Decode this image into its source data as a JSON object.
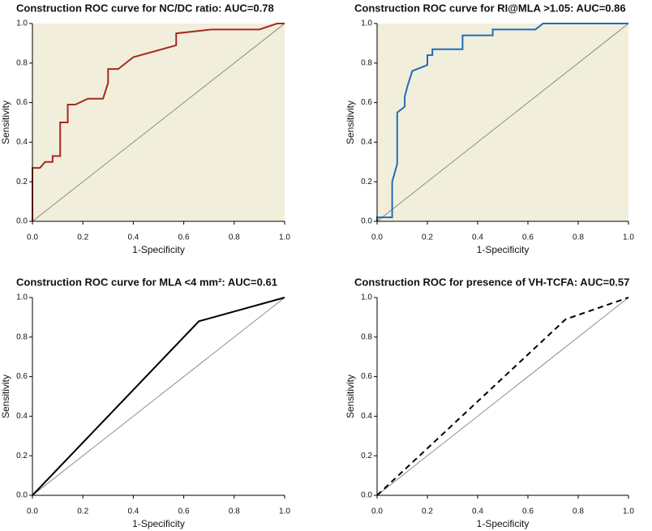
{
  "chart_data": [
    {
      "type": "line",
      "title": "Construction ROC curve for NC/DC ratio: AUC=0.78",
      "xlabel": "1-Specificity",
      "ylabel": "Sensitivity",
      "background": "#f2eedc",
      "x": [
        0,
        0,
        0.03,
        0.05,
        0.08,
        0.08,
        0.11,
        0.11,
        0.14,
        0.14,
        0.17,
        0.22,
        0.28,
        0.3,
        0.3,
        0.34,
        0.4,
        0.57,
        0.57,
        0.71,
        0.9,
        0.97,
        1.0
      ],
      "series": [
        {
          "color": "#a52a1f",
          "line_style": "solid",
          "values": [
            0,
            0.27,
            0.27,
            0.3,
            0.3,
            0.33,
            0.33,
            0.5,
            0.5,
            0.59,
            0.59,
            0.62,
            0.62,
            0.7,
            0.77,
            0.77,
            0.83,
            0.89,
            0.95,
            0.97,
            0.97,
            1.0,
            1.0
          ]
        }
      ],
      "xlim": [
        0,
        1
      ],
      "ylim": [
        0,
        1
      ],
      "xticks": [
        {
          "value": 0,
          "label": "0.0"
        },
        0.2,
        0.4,
        0.6,
        0.8,
        {
          "value": 1,
          "label": "1.0"
        }
      ],
      "yticks": [
        {
          "value": 0,
          "label": "0.0"
        },
        0.2,
        0.4,
        0.6,
        0.8,
        {
          "value": 1,
          "label": "1.0"
        }
      ]
    },
    {
      "type": "line",
      "title": "Construction ROC curve for RI@MLA >1.05: AUC=0.86",
      "xlabel": "1-Specificity",
      "ylabel": "Sensitivity",
      "background": "#f2eedc",
      "x": [
        0,
        0,
        0.06,
        0.06,
        0.08,
        0.08,
        0.11,
        0.11,
        0.12,
        0.14,
        0.2,
        0.2,
        0.22,
        0.22,
        0.34,
        0.34,
        0.46,
        0.46,
        0.63,
        0.66,
        1.0
      ],
      "series": [
        {
          "color": "#1f6fb5",
          "line_style": "solid",
          "values": [
            0,
            0.02,
            0.02,
            0.2,
            0.29,
            0.55,
            0.58,
            0.63,
            0.68,
            0.76,
            0.79,
            0.84,
            0.84,
            0.87,
            0.87,
            0.94,
            0.94,
            0.97,
            0.97,
            1.0,
            1.0
          ]
        }
      ],
      "xlim": [
        0,
        1
      ],
      "ylim": [
        0,
        1
      ],
      "xticks": [
        {
          "value": 0,
          "label": "0.0"
        },
        0.2,
        0.4,
        0.6,
        0.8,
        {
          "value": 1,
          "label": "1.0"
        }
      ],
      "yticks": [
        {
          "value": 0,
          "label": "0.0"
        },
        0.2,
        0.4,
        0.6,
        0.8,
        {
          "value": 1,
          "label": "1.0"
        }
      ]
    },
    {
      "type": "line",
      "title": "Construction ROC curve for MLA <4 mm²: AUC=0.61",
      "xlabel": "1-Specificity",
      "ylabel": "Sensitivity",
      "background": "#ffffff",
      "x": [
        0,
        0.66,
        1.0
      ],
      "series": [
        {
          "color": "#000000",
          "line_style": "solid",
          "values": [
            0,
            0.88,
            1.0
          ]
        }
      ],
      "xlim": [
        0,
        1
      ],
      "ylim": [
        0,
        1
      ],
      "xticks": [
        {
          "value": 0,
          "label": "0.0"
        },
        0.2,
        0.4,
        0.6,
        0.8,
        {
          "value": 1,
          "label": "1.0"
        }
      ],
      "yticks": [
        {
          "value": 0,
          "label": "0.0"
        },
        0.2,
        0.4,
        0.6,
        0.8,
        {
          "value": 1,
          "label": "1.0"
        }
      ]
    },
    {
      "type": "line",
      "title": "Construction ROC for presence of VH-TCFA: AUC=0.57",
      "xlabel": "1-Specificity",
      "ylabel": "Sensitivity",
      "background": "#ffffff",
      "x": [
        0,
        0.75,
        1.0
      ],
      "series": [
        {
          "color": "#000000",
          "line_style": "dashed",
          "values": [
            0,
            0.89,
            1.0
          ]
        }
      ],
      "xlim": [
        0,
        1
      ],
      "ylim": [
        0,
        1
      ],
      "xticks": [
        {
          "value": 0,
          "label": "0.0"
        },
        0.2,
        0.4,
        0.6,
        0.8,
        {
          "value": 1,
          "label": "1.0"
        }
      ],
      "yticks": [
        {
          "value": 0,
          "label": "0.0"
        },
        0.2,
        0.4,
        0.6,
        0.8,
        {
          "value": 1,
          "label": "1.0"
        }
      ]
    }
  ]
}
